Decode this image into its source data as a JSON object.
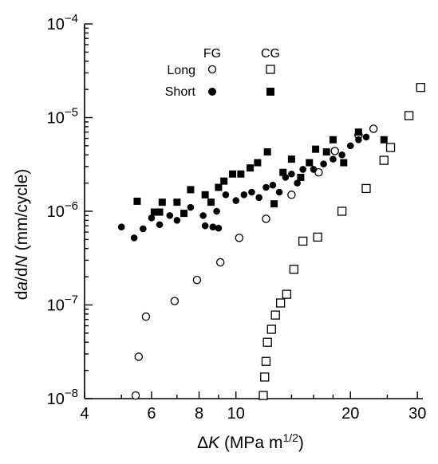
{
  "chart_data": {
    "type": "scatter",
    "x_scale": "log",
    "y_scale": "log",
    "xlim": [
      4,
      31
    ],
    "ylim": [
      1e-08,
      0.0001
    ],
    "grid": false,
    "legend_position": "top-left",
    "x_ticks": [
      {
        "value": 4,
        "label": "4"
      },
      {
        "value": 6,
        "label": "6"
      },
      {
        "value": 8,
        "label": "8"
      },
      {
        "value": 10,
        "label": "10"
      },
      {
        "value": 20,
        "label": "20"
      },
      {
        "value": 30,
        "label": "30"
      }
    ],
    "y_ticks": [
      {
        "value": 1e-08,
        "base": "10",
        "exp": "−8"
      },
      {
        "value": 1e-07,
        "base": "10",
        "exp": "−7"
      },
      {
        "value": 1e-06,
        "base": "10",
        "exp": "−6"
      },
      {
        "value": 1e-05,
        "base": "10",
        "exp": "−5"
      },
      {
        "value": 0.0001,
        "base": "10",
        "exp": "−4"
      }
    ],
    "legend": {
      "col_fg": "FG",
      "col_cg": "CG",
      "row_long": "Long",
      "row_short": "Short"
    },
    "series": [
      {
        "name": "FG Long",
        "marker": "open-circle",
        "points": [
          [
            5.45,
            1.08e-08
          ],
          [
            5.55,
            2.8e-08
          ],
          [
            5.8,
            7.5e-08
          ],
          [
            6.9,
            1.1e-07
          ],
          [
            7.9,
            1.85e-07
          ],
          [
            9.1,
            2.85e-07
          ],
          [
            10.2,
            5.2e-07
          ],
          [
            12.0,
            8.3e-07
          ],
          [
            14.0,
            1.5e-06
          ],
          [
            16.5,
            2.6e-06
          ],
          [
            18.2,
            4.4e-06
          ],
          [
            21.0,
            6.5e-06
          ],
          [
            23.0,
            7.6e-06
          ]
        ]
      },
      {
        "name": "FG Short",
        "marker": "filled-circle",
        "points": [
          [
            5.0,
            6.8e-07
          ],
          [
            5.4,
            5.2e-07
          ],
          [
            5.7,
            6.5e-07
          ],
          [
            6.0,
            8.5e-07
          ],
          [
            6.3,
            7.2e-07
          ],
          [
            6.7,
            9e-07
          ],
          [
            7.0,
            8e-07
          ],
          [
            7.6,
            1.1e-06
          ],
          [
            8.2,
            9e-07
          ],
          [
            8.3,
            7e-07
          ],
          [
            8.7,
            6.8e-07
          ],
          [
            8.9,
            1e-06
          ],
          [
            9.0,
            6.6e-07
          ],
          [
            9.4,
            1.5e-06
          ],
          [
            10.0,
            1.3e-06
          ],
          [
            10.5,
            1.5e-06
          ],
          [
            11.0,
            1.6e-06
          ],
          [
            11.5,
            1.4e-06
          ],
          [
            12.0,
            1.8e-06
          ],
          [
            12.5,
            1.9e-06
          ],
          [
            13.0,
            1.6e-06
          ],
          [
            13.5,
            2.3e-06
          ],
          [
            14.0,
            2.5e-06
          ],
          [
            14.5,
            2e-06
          ],
          [
            15.0,
            2.8e-06
          ],
          [
            16.0,
            2.8e-06
          ],
          [
            17.0,
            3.2e-06
          ],
          [
            18.0,
            3.6e-06
          ],
          [
            19.0,
            4e-06
          ],
          [
            20.0,
            5e-06
          ],
          [
            21.0,
            5.8e-06
          ],
          [
            22.0,
            6.2e-06
          ]
        ]
      },
      {
        "name": "CG Long",
        "marker": "open-square",
        "points": [
          [
            11.8,
            1.08e-08
          ],
          [
            11.9,
            1.7e-08
          ],
          [
            12.0,
            2.5e-08
          ],
          [
            12.1,
            4e-08
          ],
          [
            12.4,
            5.5e-08
          ],
          [
            12.7,
            7.8e-08
          ],
          [
            13.1,
            1.05e-07
          ],
          [
            13.6,
            1.3e-07
          ],
          [
            14.2,
            2.4e-07
          ],
          [
            15.0,
            4.8e-07
          ],
          [
            16.4,
            5.3e-07
          ],
          [
            19.0,
            1e-06
          ],
          [
            22.0,
            1.75e-06
          ],
          [
            24.5,
            3.5e-06
          ],
          [
            25.5,
            4.8e-06
          ],
          [
            28.5,
            1.05e-05
          ],
          [
            30.6,
            2.1e-05
          ]
        ]
      },
      {
        "name": "CG Short",
        "marker": "filled-square",
        "points": [
          [
            5.5,
            1.28e-06
          ],
          [
            6.1,
            9.8e-07
          ],
          [
            6.3,
            9.8e-07
          ],
          [
            6.4,
            1.25e-06
          ],
          [
            7.0,
            1.25e-06
          ],
          [
            7.3,
            9.5e-07
          ],
          [
            7.6,
            1.7e-06
          ],
          [
            8.3,
            1.5e-06
          ],
          [
            8.6,
            1.25e-06
          ],
          [
            9.0,
            1.8e-06
          ],
          [
            9.3,
            2.1e-06
          ],
          [
            9.8,
            2.5e-06
          ],
          [
            10.3,
            2.5e-06
          ],
          [
            10.9,
            2.9e-06
          ],
          [
            11.4,
            3.3e-06
          ],
          [
            12.1,
            4.3e-06
          ],
          [
            12.6,
            1.2e-06
          ],
          [
            13.3,
            2.6e-06
          ],
          [
            14.0,
            3.6e-06
          ],
          [
            14.8,
            2.3e-06
          ],
          [
            15.6,
            3.3e-06
          ],
          [
            16.2,
            4.6e-06
          ],
          [
            17.3,
            4.3e-06
          ],
          [
            18.0,
            5.8e-06
          ],
          [
            19.2,
            3.3e-06
          ],
          [
            21.0,
            7e-06
          ],
          [
            24.5,
            5.8e-06
          ]
        ]
      }
    ]
  }
}
